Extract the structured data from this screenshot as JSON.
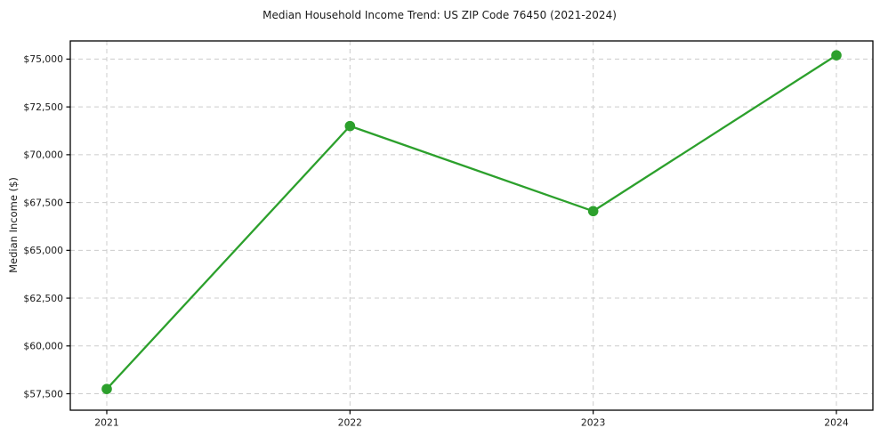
{
  "chart_data": {
    "type": "line",
    "title": "Median Household Income Trend: US ZIP Code 76450 (2021-2024)",
    "xlabel": "",
    "ylabel": "Median Income ($)",
    "categories": [
      "2021",
      "2022",
      "2023",
      "2024"
    ],
    "series": [
      {
        "name": "Median Household Income",
        "values": [
          57750,
          71500,
          67050,
          75200
        ],
        "color": "#2ca02c",
        "marker": "circle",
        "line_style": "solid"
      }
    ],
    "y_ticks": [
      57500,
      60000,
      62500,
      65000,
      67500,
      70000,
      72500,
      75000
    ],
    "y_tick_labels": [
      "$57,500",
      "$60,000",
      "$62,500",
      "$65,000",
      "$67,500",
      "$70,000",
      "$72,500",
      "$75,000"
    ],
    "ylim": [
      56640,
      75950
    ],
    "x_margin": 0.05,
    "grid": true,
    "grid_style": "dashed",
    "legend": "none",
    "colors": {
      "line": "#2ca02c",
      "marker": "#2ca02c",
      "grid": "#cccccc",
      "spine": "#000000",
      "background": "#ffffff",
      "text": "#1a1a1a"
    }
  }
}
